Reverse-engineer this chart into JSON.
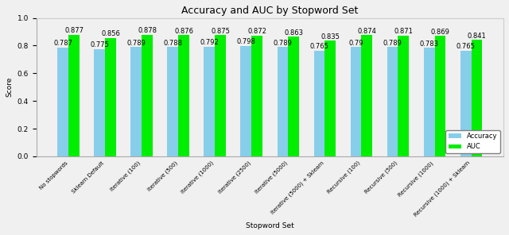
{
  "categories": [
    "No stopwords",
    "Sklearn Default",
    "Iterative (100)",
    "Iterative (500)",
    "Iterative (1000)",
    "Iterative (2500)",
    "Iterative (5000)",
    "Iterative (5000) + Sklearn",
    "Recursive (100)",
    "Recursive (500)",
    "Recursive (1000)",
    "Recursive (1000) + Sklearn"
  ],
  "accuracy": [
    0.787,
    0.775,
    0.789,
    0.788,
    0.792,
    0.798,
    0.789,
    0.765,
    0.79,
    0.789,
    0.783,
    0.765
  ],
  "auc": [
    0.877,
    0.856,
    0.878,
    0.876,
    0.875,
    0.872,
    0.863,
    0.835,
    0.874,
    0.871,
    0.869,
    0.841
  ],
  "accuracy_color": "#87CEEB",
  "auc_color": "#00EE00",
  "title": "Accuracy and AUC by Stopword Set",
  "xlabel": "Stopword Set",
  "ylabel": "Score",
  "ylim": [
    0.0,
    1.0
  ],
  "bar_width": 0.3,
  "legend_labels": [
    "Accuracy",
    "AUC"
  ],
  "label_fontsize": 6.0,
  "tick_fontsize": 6.5,
  "title_fontsize": 9,
  "fig_bg": "#f0f0f0",
  "plot_bg": "#f0f0f0"
}
